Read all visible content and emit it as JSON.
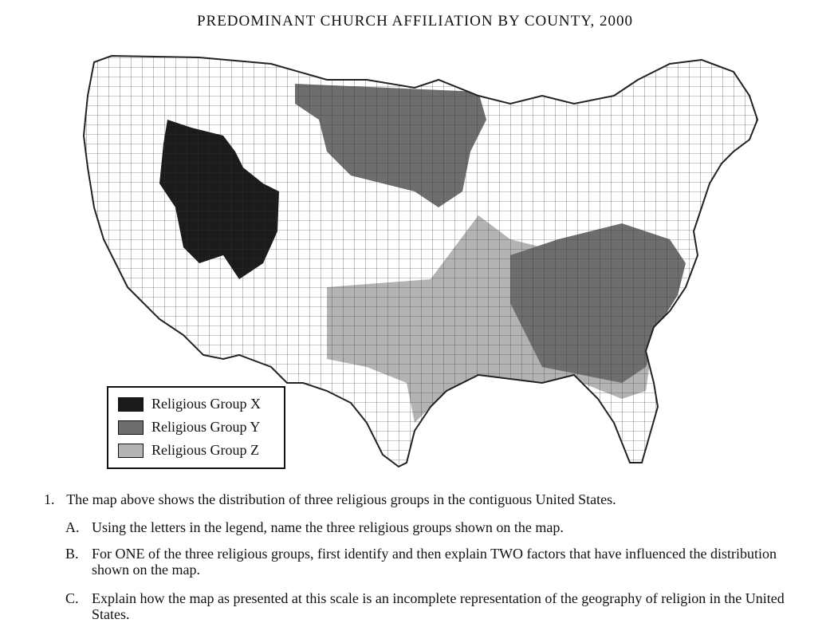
{
  "title": "PREDOMINANT CHURCH AFFILIATION BY COUNTY, 2000",
  "colors": {
    "group_x": "#1b1b1b",
    "group_y": "#6e6e6e",
    "group_z": "#b3b3b3",
    "outline": "#222222"
  },
  "legend": [
    {
      "label": "Religious Group X",
      "color_key": "group_x"
    },
    {
      "label": "Religious Group Y",
      "color_key": "group_y"
    },
    {
      "label": "Religious Group Z",
      "color_key": "group_z"
    }
  ],
  "question": {
    "number": "1.",
    "text": "The map above shows the distribution of three religious groups in the contiguous United States.",
    "parts": [
      {
        "letter": "A.",
        "text": "Using the letters in the legend, name the three religious groups shown on the map."
      },
      {
        "letter": "B.",
        "text": "For ONE of the three religious groups, first identify and then explain TWO factors that have influenced the distribution shown on the map."
      },
      {
        "letter": "C.",
        "text": "Explain how the map as presented at this scale is an incomplete representation of the geography of religion in the United States."
      }
    ]
  }
}
